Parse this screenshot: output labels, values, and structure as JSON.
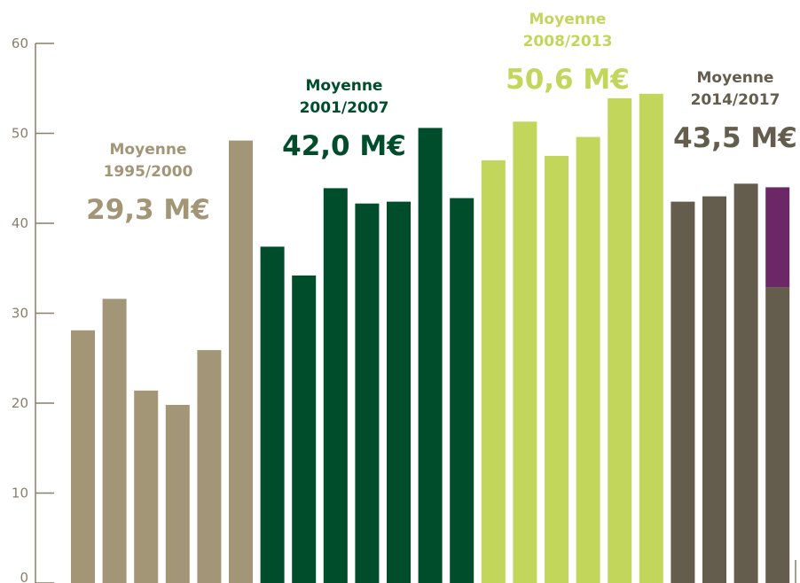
{
  "chart_data": {
    "type": "bar",
    "ylim": [
      0,
      60
    ],
    "yticks": [
      0,
      10,
      20,
      30,
      40,
      50,
      60
    ],
    "grid": false,
    "bars": [
      {
        "period": 0,
        "value": 28.1
      },
      {
        "period": 0,
        "value": 31.6
      },
      {
        "period": 0,
        "value": 21.4
      },
      {
        "period": 0,
        "value": 19.8
      },
      {
        "period": 0,
        "value": 25.9
      },
      {
        "period": 0,
        "value": 49.2
      },
      {
        "period": 1,
        "value": 37.4
      },
      {
        "period": 1,
        "value": 34.2
      },
      {
        "period": 1,
        "value": 43.9
      },
      {
        "period": 1,
        "value": 42.2
      },
      {
        "period": 1,
        "value": 42.4
      },
      {
        "period": 1,
        "value": 50.6
      },
      {
        "period": 1,
        "value": 42.8
      },
      {
        "period": 2,
        "value": 47.0
      },
      {
        "period": 2,
        "value": 51.3
      },
      {
        "period": 2,
        "value": 47.5
      },
      {
        "period": 2,
        "value": 49.6
      },
      {
        "period": 2,
        "value": 53.9
      },
      {
        "period": 2,
        "value": 54.4
      },
      {
        "period": 3,
        "value": 42.4
      },
      {
        "period": 3,
        "value": 43.0
      },
      {
        "period": 3,
        "value": 44.4
      },
      {
        "period": 3,
        "value": 32.9,
        "top_segment": 11.1
      }
    ],
    "periods": [
      {
        "title": "Moyenne",
        "years": "1995/2000",
        "average": "29,3 M€",
        "color": "#a39677"
      },
      {
        "title": "Moyenne",
        "years": "2001/2007",
        "average": "42,0 M€",
        "color": "#004d2c"
      },
      {
        "title": "Moyenne",
        "years": "2008/2013",
        "average": "50,6 M€",
        "color": "#c3d65c"
      },
      {
        "title": "Moyenne",
        "years": "2014/2017",
        "average": "43,5 M€",
        "color": "#645d4d"
      }
    ],
    "top_segment_color": "#6b2766",
    "axis_color": "#8a7f6c"
  }
}
